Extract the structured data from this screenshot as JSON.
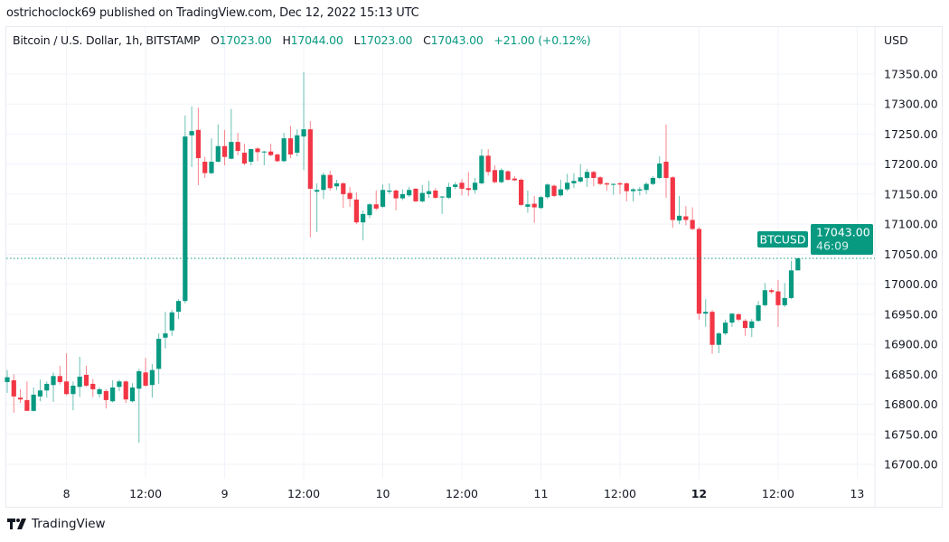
{
  "header": {
    "published": "ostrichoclock69 published on TradingView.com, Dec 12, 2022 15:13 UTC"
  },
  "legend": {
    "symbol": "Bitcoin / U.S. Dollar, 1h, BITSTAMP",
    "open_label": "O",
    "open": "17023.00",
    "high_label": "H",
    "high": "17044.00",
    "low_label": "L",
    "low": "17023.00",
    "close_label": "C",
    "close": "17043.00",
    "change": "+21.00 (+0.12%)"
  },
  "price_axis": {
    "currency": "USD"
  },
  "price_tag": {
    "symbol": "BTCUSD",
    "price": "17043.00",
    "countdown": "46:09"
  },
  "footer": {
    "brand": "TradingView",
    "logo_icon": "tradingview-logo-icon"
  },
  "colors": {
    "up": "#089981",
    "down": "#f23645",
    "grid": "#f0f3fa",
    "text": "#131722"
  },
  "chart_data": {
    "type": "candlestick",
    "interval": "1h",
    "grid": true,
    "ylim": [
      16680,
      17370
    ],
    "y_ticks": [
      "16700.00",
      "16750.00",
      "16800.00",
      "16850.00",
      "16900.00",
      "16950.00",
      "17000.00",
      "17050.00",
      "17100.00",
      "17150.00",
      "17200.00",
      "17250.00",
      "17300.00",
      "17350.00"
    ],
    "x_ticks": [
      {
        "label": "8",
        "time": "2022-12-08T00:00",
        "bold": false
      },
      {
        "label": "12:00",
        "time": "2022-12-08T12:00",
        "bold": false
      },
      {
        "label": "9",
        "time": "2022-12-09T00:00",
        "bold": false
      },
      {
        "label": "12:00",
        "time": "2022-12-09T12:00",
        "bold": false
      },
      {
        "label": "10",
        "time": "2022-12-10T00:00",
        "bold": false
      },
      {
        "label": "12:00",
        "time": "2022-12-10T12:00",
        "bold": false
      },
      {
        "label": "11",
        "time": "2022-12-11T00:00",
        "bold": false
      },
      {
        "label": "12:00",
        "time": "2022-12-11T12:00",
        "bold": false
      },
      {
        "label": "12",
        "time": "2022-12-12T00:00",
        "bold": true
      },
      {
        "label": "12:00",
        "time": "2022-12-12T12:00",
        "bold": false
      },
      {
        "label": "13",
        "time": "2022-12-13T00:00",
        "bold": false
      }
    ],
    "last_price": 17043,
    "first_candle_time": "2022-12-07T15:00",
    "columns": [
      "open",
      "high",
      "low",
      "close"
    ],
    "candles": [
      [
        16837,
        16857,
        16819,
        16845
      ],
      [
        16840,
        16850,
        16786,
        16813
      ],
      [
        16811,
        16825,
        16802,
        16808
      ],
      [
        16807,
        16838,
        16789,
        16789
      ],
      [
        16789,
        16828,
        16788,
        16816
      ],
      [
        16813,
        16841,
        16805,
        16823
      ],
      [
        16823,
        16838,
        16811,
        16834
      ],
      [
        16832,
        16853,
        16804,
        16847
      ],
      [
        16847,
        16864,
        16833,
        16837
      ],
      [
        16838,
        16885,
        16815,
        16817
      ],
      [
        16817,
        16838,
        16790,
        16831
      ],
      [
        16829,
        16879,
        16812,
        16846
      ],
      [
        16849,
        16864,
        16829,
        16831
      ],
      [
        16834,
        16842,
        16812,
        16825
      ],
      [
        16817,
        16828,
        16811,
        16825
      ],
      [
        16822,
        16825,
        16793,
        16807
      ],
      [
        16805,
        16840,
        16803,
        16828
      ],
      [
        16829,
        16841,
        16822,
        16838
      ],
      [
        16838,
        16840,
        16802,
        16808
      ],
      [
        16805,
        16835,
        16803,
        16828
      ],
      [
        16826,
        16859,
        16736,
        16855
      ],
      [
        16853,
        16877,
        16829,
        16831
      ],
      [
        16832,
        16867,
        16811,
        16857
      ],
      [
        16859,
        16918,
        16834,
        16909
      ],
      [
        16911,
        16954,
        16893,
        16918
      ],
      [
        16923,
        16957,
        16914,
        16953
      ],
      [
        16954,
        16975,
        16942,
        16972
      ],
      [
        16972,
        17281,
        16968,
        17246
      ],
      [
        17248,
        17296,
        17195,
        17255
      ],
      [
        17257,
        17294,
        17165,
        17210
      ],
      [
        17204,
        17212,
        17177,
        17185
      ],
      [
        17185,
        17243,
        17183,
        17204
      ],
      [
        17204,
        17266,
        17203,
        17230
      ],
      [
        17230,
        17257,
        17198,
        17212
      ],
      [
        17209,
        17292,
        17208,
        17237
      ],
      [
        17237,
        17252,
        17215,
        17222
      ],
      [
        17219,
        17234,
        17198,
        17201
      ],
      [
        17204,
        17226,
        17198,
        17225
      ],
      [
        17226,
        17228,
        17205,
        17220
      ],
      [
        17220,
        17222,
        17198,
        17221
      ],
      [
        17221,
        17234,
        17213,
        17215
      ],
      [
        17216,
        17218,
        17203,
        17205
      ],
      [
        17205,
        17252,
        17203,
        17243
      ],
      [
        17243,
        17264,
        17210,
        17216
      ],
      [
        17219,
        17258,
        17213,
        17248
      ],
      [
        17246,
        17353,
        17190,
        17258
      ],
      [
        17258,
        17272,
        17078,
        17159
      ],
      [
        17154,
        17168,
        17087,
        17157
      ],
      [
        17157,
        17186,
        17142,
        17182
      ],
      [
        17182,
        17189,
        17156,
        17160
      ],
      [
        17163,
        17174,
        17157,
        17168
      ],
      [
        17168,
        17170,
        17127,
        17150
      ],
      [
        17152,
        17162,
        17129,
        17142
      ],
      [
        17141,
        17153,
        17100,
        17103
      ],
      [
        17103,
        17123,
        17073,
        17117
      ],
      [
        17115,
        17135,
        17110,
        17133
      ],
      [
        17133,
        17156,
        17123,
        17126
      ],
      [
        17129,
        17166,
        17127,
        17157
      ],
      [
        17154,
        17168,
        17150,
        17156
      ],
      [
        17156,
        17158,
        17123,
        17143
      ],
      [
        17143,
        17158,
        17140,
        17150
      ],
      [
        17148,
        17162,
        17145,
        17157
      ],
      [
        17159,
        17160,
        17137,
        17138
      ],
      [
        17138,
        17165,
        17136,
        17152
      ],
      [
        17150,
        17172,
        17144,
        17155
      ],
      [
        17156,
        17160,
        17142,
        17144
      ],
      [
        17145,
        17147,
        17117,
        17146
      ],
      [
        17144,
        17169,
        17142,
        17162
      ],
      [
        17162,
        17170,
        17158,
        17166
      ],
      [
        17169,
        17175,
        17148,
        17159
      ],
      [
        17160,
        17187,
        17147,
        17157
      ],
      [
        17157,
        17177,
        17151,
        17169
      ],
      [
        17168,
        17225,
        17166,
        17214
      ],
      [
        17214,
        17225,
        17181,
        17187
      ],
      [
        17190,
        17198,
        17168,
        17170
      ],
      [
        17170,
        17193,
        17168,
        17190
      ],
      [
        17188,
        17190,
        17172,
        17174
      ],
      [
        17176,
        17180,
        17172,
        17173
      ],
      [
        17174,
        17176,
        17130,
        17132
      ],
      [
        17129,
        17156,
        17119,
        17133
      ],
      [
        17134,
        17147,
        17102,
        17128
      ],
      [
        17127,
        17147,
        17125,
        17145
      ],
      [
        17145,
        17168,
        17142,
        17166
      ],
      [
        17164,
        17166,
        17145,
        17147
      ],
      [
        17148,
        17174,
        17146,
        17158
      ],
      [
        17158,
        17184,
        17155,
        17169
      ],
      [
        17168,
        17185,
        17160,
        17172
      ],
      [
        17171,
        17200,
        17169,
        17178
      ],
      [
        17177,
        17192,
        17162,
        17187
      ],
      [
        17187,
        17189,
        17163,
        17177
      ],
      [
        17178,
        17180,
        17165,
        17167
      ],
      [
        17168,
        17170,
        17156,
        17166
      ],
      [
        17166,
        17168,
        17149,
        17167
      ],
      [
        17168,
        17170,
        17150,
        17166
      ],
      [
        17168,
        17170,
        17138,
        17155
      ],
      [
        17155,
        17160,
        17138,
        17158
      ],
      [
        17156,
        17162,
        17148,
        17158
      ],
      [
        17157,
        17170,
        17150,
        17167
      ],
      [
        17167,
        17180,
        17165,
        17177
      ],
      [
        17177,
        17213,
        17175,
        17201
      ],
      [
        17204,
        17266,
        17144,
        17177
      ],
      [
        17178,
        17180,
        17094,
        17107
      ],
      [
        17106,
        17147,
        17100,
        17114
      ],
      [
        17113,
        17130,
        17098,
        17107
      ],
      [
        17107,
        17128,
        17090,
        17092
      ],
      [
        17092,
        17095,
        16941,
        16951
      ],
      [
        16951,
        16975,
        16929,
        16954
      ],
      [
        16954,
        16957,
        16884,
        16899
      ],
      [
        16899,
        16920,
        16885,
        16918
      ],
      [
        16918,
        16941,
        16915,
        16936
      ],
      [
        16936,
        16952,
        16929,
        16951
      ],
      [
        16950,
        16952,
        16938,
        16941
      ],
      [
        16939,
        16942,
        16914,
        16927
      ],
      [
        16927,
        16942,
        16912,
        16938
      ],
      [
        16939,
        16972,
        16937,
        16965
      ],
      [
        16965,
        17002,
        16963,
        16990
      ],
      [
        16990,
        16993,
        16984,
        16987
      ],
      [
        16988,
        17007,
        16929,
        16965
      ],
      [
        16965,
        17002,
        16962,
        16977
      ],
      [
        16977,
        17039,
        16975,
        17023
      ],
      [
        17023,
        17044,
        17023,
        17043
      ]
    ]
  }
}
